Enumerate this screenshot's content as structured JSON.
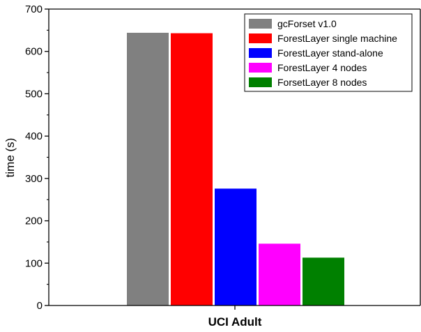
{
  "chart_data": {
    "type": "bar",
    "title": "",
    "xlabel": "",
    "ylabel": "time (s)",
    "categories": [
      "UCI Adult"
    ],
    "ylim": [
      0,
      700
    ],
    "yticks": [
      0,
      100,
      200,
      300,
      400,
      500,
      600,
      700
    ],
    "grid": false,
    "legend_position": "top-right",
    "series": [
      {
        "name": "gcForset v1.0",
        "values": [
          644
        ],
        "color": "#808080"
      },
      {
        "name": "ForestLayer single machine",
        "values": [
          643
        ],
        "color": "#ff0000"
      },
      {
        "name": "ForestLayer stand-alone",
        "values": [
          276
        ],
        "color": "#0000ff"
      },
      {
        "name": "ForestLayer 4 nodes",
        "values": [
          146
        ],
        "color": "#ff00ff"
      },
      {
        "name": "ForsetLayer 8 nodes",
        "values": [
          113
        ],
        "color": "#008000"
      }
    ]
  }
}
